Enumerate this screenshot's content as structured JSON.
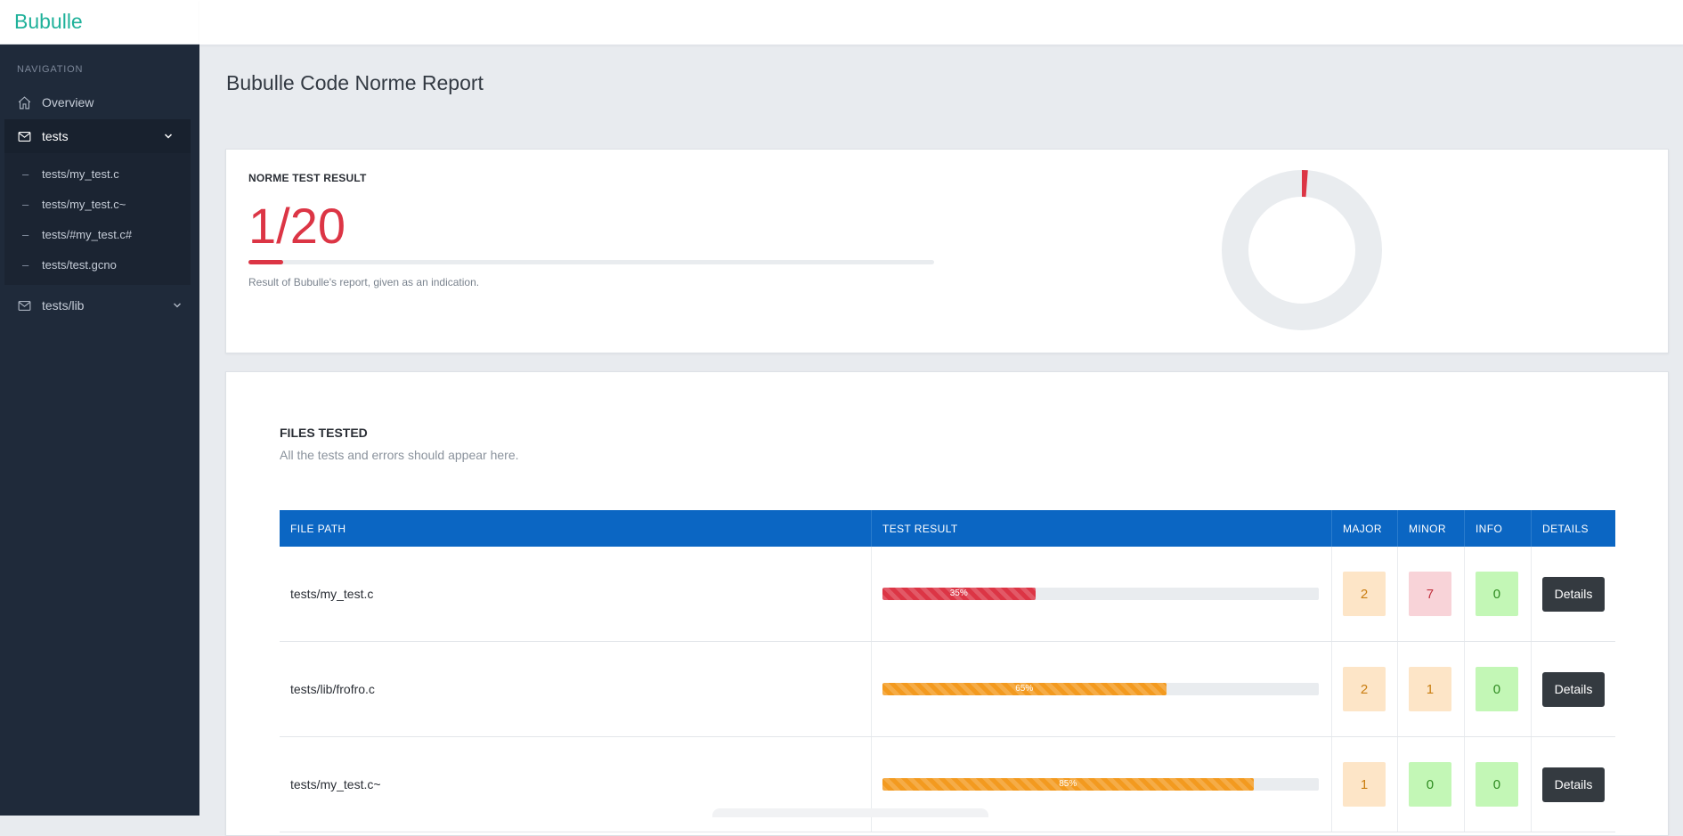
{
  "brand": "Bubulle",
  "sidebar": {
    "nav_title": "NAVIGATION",
    "overview": "Overview",
    "tests_group": "tests",
    "tests_items": [
      "tests/my_test.c",
      "tests/my_test.c~",
      "tests/#my_test.c#",
      "tests/test.gcno"
    ],
    "lib_group": "tests/lib"
  },
  "page_title": "Bubulle Code Norme Report",
  "result_card": {
    "label": "NORME TEST RESULT",
    "score": "1/20",
    "score_fraction": 0.05,
    "note": "Result of Bubulle's report, given as an indication."
  },
  "files_card": {
    "title": "FILES TESTED",
    "subtitle": "All the tests and errors should appear here.",
    "headers": {
      "path": "FILE PATH",
      "result": "TEST RESULT",
      "major": "MAJOR",
      "minor": "MINOR",
      "info": "INFO",
      "details": "DETAILS"
    },
    "rows": [
      {
        "path": "tests/my_test.c",
        "percent": 35,
        "percent_label": "35%",
        "major": "2",
        "minor": "7",
        "info": "0",
        "details": "Details"
      },
      {
        "path": "tests/lib/frofro.c",
        "percent": 65,
        "percent_label": "65%",
        "major": "2",
        "minor": "1",
        "info": "0",
        "details": "Details"
      },
      {
        "path": "tests/my_test.c~",
        "percent": 85,
        "percent_label": "85%",
        "major": "1",
        "minor": "0",
        "info": "0",
        "details": "Details"
      }
    ]
  },
  "colors": {
    "accent": "#1fb19a",
    "sidebar_bg": "#1f2a3a",
    "table_header": "#0b66c3",
    "danger": "#dc3545",
    "warning": "#f39a1f"
  }
}
